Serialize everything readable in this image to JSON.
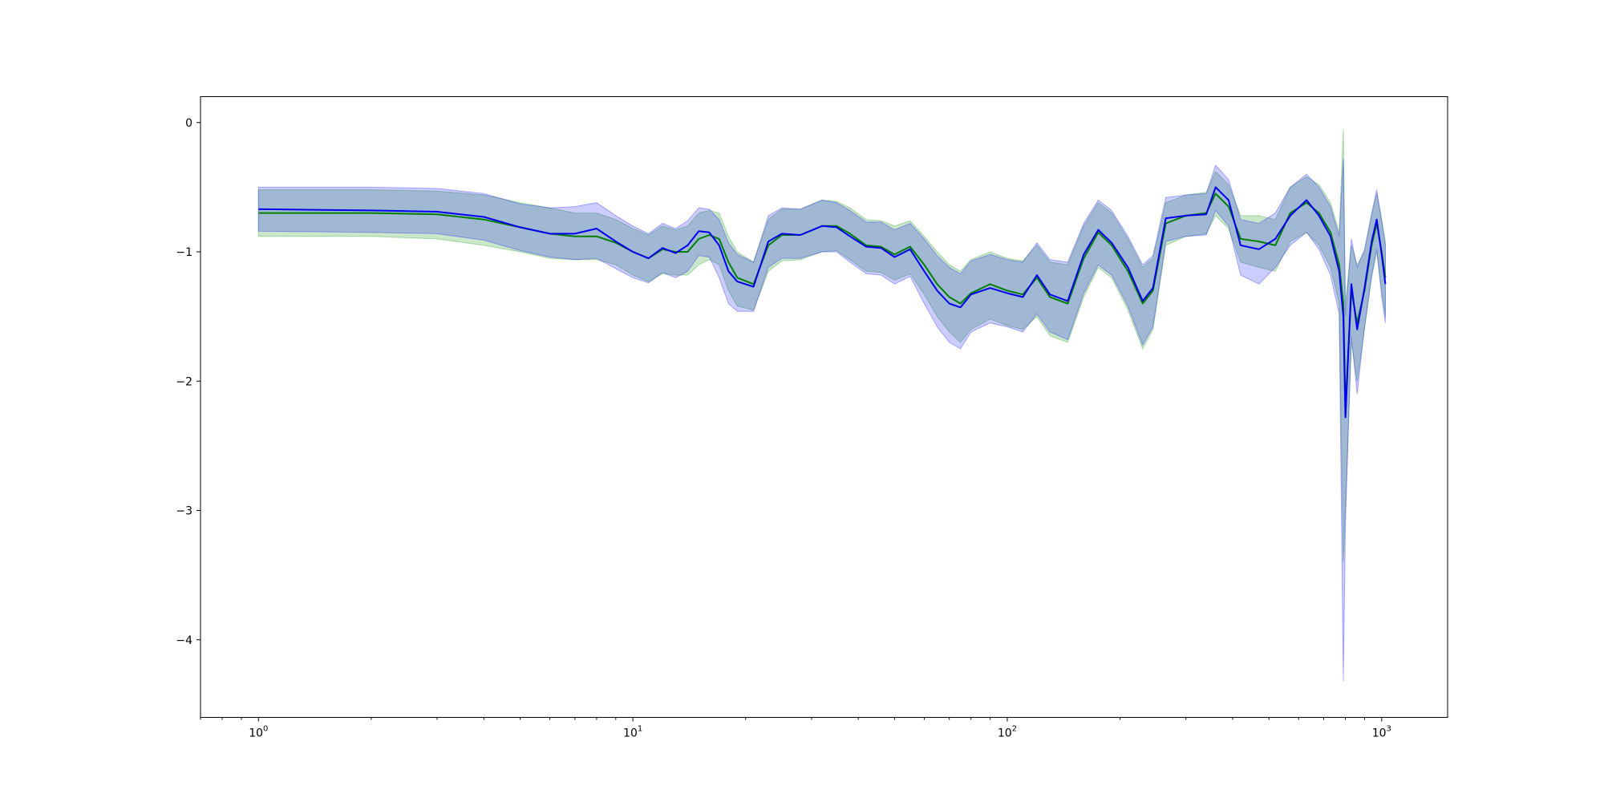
{
  "chart_data": {
    "type": "line",
    "title": "",
    "xlabel": "",
    "ylabel": "",
    "xscale": "log",
    "xlim": [
      0.7,
      1500
    ],
    "ylim": [
      -4.6,
      0.2
    ],
    "grid": false,
    "legend": "none",
    "x_ticks": [
      {
        "value": 1,
        "base": "10",
        "exp": "0"
      },
      {
        "value": 10,
        "base": "10",
        "exp": "1"
      },
      {
        "value": 100,
        "base": "10",
        "exp": "2"
      },
      {
        "value": 1000,
        "base": "10",
        "exp": "3"
      }
    ],
    "y_ticks": [
      {
        "value": 0,
        "label": "0"
      },
      {
        "value": -1,
        "label": "−1"
      },
      {
        "value": -2,
        "label": "−2"
      },
      {
        "value": -3,
        "label": "−3"
      },
      {
        "value": -4,
        "label": "−4"
      }
    ],
    "series": [
      {
        "color": "#007f00",
        "band_color": "#2ca02c",
        "band_opacity": 0.25,
        "points": [
          [
            1,
            -0.7,
            -0.88,
            -0.52
          ],
          [
            2,
            -0.7,
            -0.88,
            -0.52
          ],
          [
            3,
            -0.71,
            -0.9,
            -0.53
          ],
          [
            4,
            -0.75,
            -0.95,
            -0.56
          ],
          [
            5,
            -0.81,
            -1.0,
            -0.62
          ],
          [
            6,
            -0.86,
            -1.05,
            -0.66
          ],
          [
            7,
            -0.88,
            -1.06,
            -0.7
          ],
          [
            8,
            -0.88,
            -1.06,
            -0.7
          ],
          [
            9,
            -0.93,
            -1.1,
            -0.75
          ],
          [
            10,
            -1.0,
            -1.18,
            -0.82
          ],
          [
            11,
            -1.05,
            -1.23,
            -0.87
          ],
          [
            12,
            -0.98,
            -1.17,
            -0.8
          ],
          [
            13,
            -1.0,
            -1.18,
            -0.83
          ],
          [
            14,
            -1.0,
            -1.18,
            -0.8
          ],
          [
            15,
            -0.9,
            -1.1,
            -0.7
          ],
          [
            16,
            -0.87,
            -1.06,
            -0.68
          ],
          [
            17,
            -0.9,
            -1.1,
            -0.7
          ],
          [
            18,
            -1.08,
            -1.3,
            -0.88
          ],
          [
            19,
            -1.2,
            -1.42,
            -1.0
          ],
          [
            21,
            -1.25,
            -1.45,
            -1.08
          ],
          [
            23,
            -0.95,
            -1.15,
            -0.75
          ],
          [
            25,
            -0.87,
            -1.07,
            -0.67
          ],
          [
            28,
            -0.87,
            -1.06,
            -0.67
          ],
          [
            32,
            -0.8,
            -1.0,
            -0.6
          ],
          [
            35,
            -0.8,
            -0.99,
            -0.61
          ],
          [
            38,
            -0.86,
            -1.06,
            -0.66
          ],
          [
            42,
            -0.95,
            -1.15,
            -0.75
          ],
          [
            46,
            -0.96,
            -1.16,
            -0.76
          ],
          [
            50,
            -1.02,
            -1.22,
            -0.8
          ],
          [
            55,
            -0.96,
            -1.17,
            -0.76
          ],
          [
            60,
            -1.1,
            -1.33,
            -0.88
          ],
          [
            65,
            -1.25,
            -1.5,
            -1.0
          ],
          [
            70,
            -1.35,
            -1.62,
            -1.1
          ],
          [
            75,
            -1.4,
            -1.7,
            -1.15
          ],
          [
            80,
            -1.32,
            -1.6,
            -1.06
          ],
          [
            90,
            -1.25,
            -1.52,
            -1.0
          ],
          [
            100,
            -1.3,
            -1.57,
            -1.05
          ],
          [
            110,
            -1.33,
            -1.6,
            -1.07
          ],
          [
            120,
            -1.2,
            -1.5,
            -0.95
          ],
          [
            130,
            -1.35,
            -1.65,
            -1.08
          ],
          [
            145,
            -1.4,
            -1.7,
            -1.1
          ],
          [
            160,
            -1.05,
            -1.35,
            -0.8
          ],
          [
            175,
            -0.85,
            -1.12,
            -0.62
          ],
          [
            190,
            -0.95,
            -1.2,
            -0.7
          ],
          [
            210,
            -1.15,
            -1.45,
            -0.9
          ],
          [
            230,
            -1.4,
            -1.75,
            -1.12
          ],
          [
            245,
            -1.3,
            -1.6,
            -1.05
          ],
          [
            265,
            -0.78,
            -0.95,
            -0.62
          ],
          [
            300,
            -0.72,
            -0.88,
            -0.56
          ],
          [
            340,
            -0.7,
            -0.86,
            -0.54
          ],
          [
            360,
            -0.55,
            -0.72,
            -0.38
          ],
          [
            390,
            -0.65,
            -0.82,
            -0.48
          ],
          [
            420,
            -0.9,
            -1.08,
            -0.72
          ],
          [
            470,
            -0.92,
            -1.12,
            -0.72
          ],
          [
            520,
            -0.95,
            -1.15,
            -0.75
          ],
          [
            570,
            -0.7,
            -0.92,
            -0.5
          ],
          [
            630,
            -0.62,
            -0.85,
            -0.42
          ],
          [
            680,
            -0.7,
            -0.95,
            -0.48
          ],
          [
            730,
            -0.85,
            -1.12,
            -0.62
          ],
          [
            770,
            -1.1,
            -1.4,
            -0.85
          ],
          [
            790,
            -1.4,
            -3.4,
            -0.05
          ],
          [
            800,
            -2.2,
            -3.0,
            -1.4
          ],
          [
            830,
            -1.3,
            -1.7,
            -0.95
          ],
          [
            860,
            -1.55,
            -2.0,
            -1.1
          ],
          [
            900,
            -1.3,
            -1.6,
            -1.0
          ],
          [
            940,
            -0.95,
            -1.2,
            -0.72
          ],
          [
            970,
            -0.78,
            -1.0,
            -0.55
          ],
          [
            1000,
            -1.0,
            -1.3,
            -0.75
          ],
          [
            1023,
            -1.2,
            -1.5,
            -0.92
          ]
        ]
      },
      {
        "color": "#0000ee",
        "band_color": "#0000ff",
        "band_opacity": 0.2,
        "points": [
          [
            1,
            -0.67,
            -0.84,
            -0.5
          ],
          [
            2,
            -0.68,
            -0.85,
            -0.5
          ],
          [
            3,
            -0.69,
            -0.86,
            -0.51
          ],
          [
            4,
            -0.73,
            -0.91,
            -0.55
          ],
          [
            5,
            -0.81,
            -0.99,
            -0.63
          ],
          [
            6,
            -0.86,
            -1.04,
            -0.66
          ],
          [
            7,
            -0.86,
            -1.06,
            -0.65
          ],
          [
            8,
            -0.82,
            -1.05,
            -0.62
          ],
          [
            9,
            -0.92,
            -1.13,
            -0.72
          ],
          [
            10,
            -1.0,
            -1.2,
            -0.8
          ],
          [
            11,
            -1.05,
            -1.24,
            -0.86
          ],
          [
            12,
            -0.97,
            -1.16,
            -0.78
          ],
          [
            13,
            -1.01,
            -1.2,
            -0.82
          ],
          [
            14,
            -0.95,
            -1.15,
            -0.76
          ],
          [
            15,
            -0.84,
            -1.03,
            -0.66
          ],
          [
            16,
            -0.85,
            -1.04,
            -0.67
          ],
          [
            17,
            -0.95,
            -1.2,
            -0.75
          ],
          [
            18,
            -1.15,
            -1.4,
            -0.93
          ],
          [
            19,
            -1.23,
            -1.46,
            -1.02
          ],
          [
            21,
            -1.27,
            -1.46,
            -1.08
          ],
          [
            23,
            -0.92,
            -1.12,
            -0.72
          ],
          [
            25,
            -0.86,
            -1.05,
            -0.66
          ],
          [
            28,
            -0.87,
            -1.05,
            -0.67
          ],
          [
            32,
            -0.8,
            -1.0,
            -0.6
          ],
          [
            35,
            -0.81,
            -1.0,
            -0.62
          ],
          [
            38,
            -0.88,
            -1.08,
            -0.68
          ],
          [
            42,
            -0.96,
            -1.17,
            -0.77
          ],
          [
            46,
            -0.97,
            -1.18,
            -0.77
          ],
          [
            50,
            -1.04,
            -1.25,
            -0.83
          ],
          [
            55,
            -0.98,
            -1.19,
            -0.78
          ],
          [
            60,
            -1.15,
            -1.4,
            -0.9
          ],
          [
            65,
            -1.3,
            -1.58,
            -1.03
          ],
          [
            70,
            -1.4,
            -1.7,
            -1.12
          ],
          [
            75,
            -1.43,
            -1.75,
            -1.17
          ],
          [
            80,
            -1.33,
            -1.62,
            -1.07
          ],
          [
            90,
            -1.28,
            -1.55,
            -1.02
          ],
          [
            100,
            -1.32,
            -1.58,
            -1.06
          ],
          [
            110,
            -1.35,
            -1.62,
            -1.08
          ],
          [
            120,
            -1.18,
            -1.48,
            -0.93
          ],
          [
            130,
            -1.33,
            -1.62,
            -1.06
          ],
          [
            145,
            -1.38,
            -1.68,
            -1.08
          ],
          [
            160,
            -1.02,
            -1.32,
            -0.78
          ],
          [
            175,
            -0.83,
            -1.1,
            -0.6
          ],
          [
            190,
            -0.93,
            -1.18,
            -0.68
          ],
          [
            210,
            -1.12,
            -1.42,
            -0.88
          ],
          [
            230,
            -1.38,
            -1.72,
            -1.1
          ],
          [
            245,
            -1.28,
            -1.58,
            -1.03
          ],
          [
            265,
            -0.74,
            -0.92,
            -0.58
          ],
          [
            300,
            -0.72,
            -0.88,
            -0.56
          ],
          [
            340,
            -0.71,
            -0.87,
            -0.55
          ],
          [
            360,
            -0.5,
            -0.68,
            -0.33
          ],
          [
            390,
            -0.6,
            -0.8,
            -0.44
          ],
          [
            420,
            -0.95,
            -1.18,
            -0.75
          ],
          [
            470,
            -0.98,
            -1.25,
            -0.78
          ],
          [
            520,
            -0.9,
            -1.12,
            -0.7
          ],
          [
            570,
            -0.72,
            -0.95,
            -0.5
          ],
          [
            630,
            -0.6,
            -0.85,
            -0.4
          ],
          [
            680,
            -0.72,
            -0.98,
            -0.5
          ],
          [
            730,
            -0.88,
            -1.18,
            -0.65
          ],
          [
            770,
            -1.15,
            -1.48,
            -0.88
          ],
          [
            790,
            -1.5,
            -4.32,
            -0.28
          ],
          [
            800,
            -2.28,
            -3.1,
            -1.5
          ],
          [
            830,
            -1.25,
            -1.65,
            -0.9
          ],
          [
            860,
            -1.6,
            -2.1,
            -1.12
          ],
          [
            900,
            -1.28,
            -1.58,
            -0.98
          ],
          [
            940,
            -0.92,
            -1.18,
            -0.7
          ],
          [
            970,
            -0.75,
            -0.98,
            -0.52
          ],
          [
            1000,
            -1.02,
            -1.35,
            -0.76
          ],
          [
            1023,
            -1.25,
            -1.55,
            -0.95
          ]
        ]
      }
    ]
  }
}
